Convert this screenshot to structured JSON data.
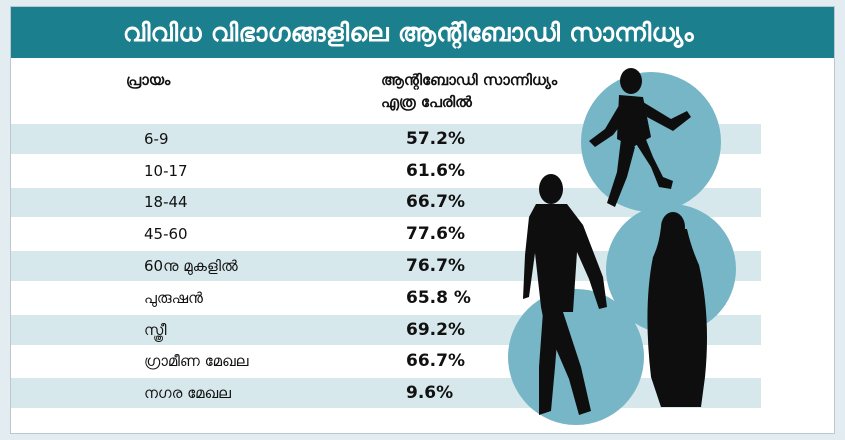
{
  "title": "വിവിധ വിഭാഗങ്ങളിലെ ആന്റിബോഡി സാന്നിധ്യം",
  "colors": {
    "title_bg": "#1b7f8e",
    "band_light": "#d7e8ed",
    "band_white": "#ffffff",
    "circle": "#76b6c6",
    "silhouette": "#0e0e0e"
  },
  "chart_data": {
    "type": "table",
    "columns": [
      "പ്രായം",
      "ആന്റിബോഡി സാന്നിധ്യം എത്ര പേരിൽ"
    ],
    "column_header_lines": {
      "col1": [
        "പ്രായം"
      ],
      "col2": [
        "ആന്റിബോഡി സാന്നിധ്യം",
        "എത്ര പേരിൽ"
      ]
    },
    "rows": [
      {
        "label": "6-9",
        "value": "57.2%"
      },
      {
        "label": "10-17",
        "value": "61.6%"
      },
      {
        "label": "18-44",
        "value": "66.7%"
      },
      {
        "label": "45-60",
        "value": "77.6%"
      },
      {
        "label": "60നു മുകളിൽ",
        "value": "76.7%"
      },
      {
        "label": "പുരുഷൻ",
        "value": "65.8 %"
      },
      {
        "label": "സ്ത്രീ",
        "value": "69.2%"
      },
      {
        "label": "ഗ്രാമീണ മേഖല",
        "value": "66.7%"
      },
      {
        "label": "നഗര മേഖല",
        "value": "9.6%"
      }
    ]
  }
}
